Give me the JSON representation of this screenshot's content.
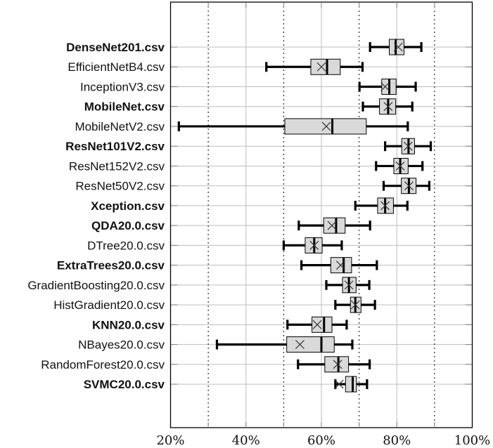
{
  "chart_data": {
    "type": "boxplot",
    "title": "",
    "xlabel": "",
    "ylabel": "",
    "xlim": [
      20,
      100
    ],
    "x_unit": "%",
    "x_ticks": [
      "20%",
      "40%",
      "60%",
      "80%",
      "100%"
    ],
    "x_tick_values": [
      20,
      40,
      60,
      80,
      100
    ],
    "grid": {
      "solid_lines_at": [
        40,
        60,
        80
      ],
      "dotted_lines_at": [
        30,
        50,
        70,
        90
      ],
      "horizontal_per_category": true
    },
    "colors": {
      "box_fill": "#d9d9d9",
      "box_stroke": "#000000",
      "whisker": "#000000",
      "mean_marker": "#333333",
      "grid_solid": "#bdbdbd",
      "grid_dotted": "#000000",
      "frame": "#000000"
    },
    "mean_marker": "x",
    "series": [
      {
        "name": "DenseNet201.csv",
        "bold": true,
        "min": 72.9,
        "q1": 78.0,
        "median": 79.7,
        "mean": 80.4,
        "q3": 81.9,
        "max": 86.5
      },
      {
        "name": "EfficientNetB4.csv",
        "bold": false,
        "min": 45.4,
        "q1": 57.2,
        "median": 61.5,
        "mean": 60.0,
        "q3": 65.0,
        "max": 70.9
      },
      {
        "name": "InceptionV3.csv",
        "bold": false,
        "min": 70.1,
        "q1": 76.0,
        "median": 78.0,
        "mean": 76.9,
        "q3": 79.8,
        "max": 85.0
      },
      {
        "name": "MobileNet.csv",
        "bold": true,
        "min": 71.0,
        "q1": 75.4,
        "median": 77.7,
        "mean": 77.7,
        "q3": 79.7,
        "max": 84.1
      },
      {
        "name": "MobileNetV2.csv",
        "bold": false,
        "min": 22.2,
        "q1": 50.3,
        "median": 62.9,
        "mean": 61.3,
        "q3": 71.9,
        "max": 82.9
      },
      {
        "name": "ResNet101V2.csv",
        "bold": true,
        "min": 76.9,
        "q1": 81.3,
        "median": 83.1,
        "mean": 83.0,
        "q3": 84.7,
        "max": 89.0
      },
      {
        "name": "ResNet152V2.csv",
        "bold": false,
        "min": 74.5,
        "q1": 79.2,
        "median": 80.9,
        "mean": 80.9,
        "q3": 83.0,
        "max": 86.8
      },
      {
        "name": "ResNet50V2.csv",
        "bold": false,
        "min": 76.5,
        "q1": 81.2,
        "median": 83.2,
        "mean": 83.2,
        "q3": 85.1,
        "max": 88.6
      },
      {
        "name": "Xception.csv",
        "bold": true,
        "min": 69.0,
        "q1": 74.9,
        "median": 76.9,
        "mean": 76.9,
        "q3": 79.1,
        "max": 82.8
      },
      {
        "name": "QDA20.0.csv",
        "bold": true,
        "min": 54.0,
        "q1": 60.6,
        "median": 63.9,
        "mean": 62.8,
        "q3": 66.3,
        "max": 72.9
      },
      {
        "name": "DTree20.0.csv",
        "bold": false,
        "min": 50.0,
        "q1": 55.7,
        "median": 58.1,
        "mean": 58.1,
        "q3": 60.2,
        "max": 65.4
      },
      {
        "name": "ExtraTrees20.0.csv",
        "bold": true,
        "min": 54.7,
        "q1": 62.5,
        "median": 65.9,
        "mean": 65.1,
        "q3": 68.0,
        "max": 74.7
      },
      {
        "name": "GradientBoosting20.0.csv",
        "bold": false,
        "min": 61.3,
        "q1": 65.6,
        "median": 67.3,
        "mean": 67.3,
        "q3": 69.2,
        "max": 72.7
      },
      {
        "name": "HistGradient20.0.csv",
        "bold": false,
        "min": 63.7,
        "q1": 67.7,
        "median": 69.0,
        "mean": 69.0,
        "q3": 70.5,
        "max": 74.2
      },
      {
        "name": "KNN20.0.csv",
        "bold": true,
        "min": 51.0,
        "q1": 57.5,
        "median": 60.7,
        "mean": 58.9,
        "q3": 62.8,
        "max": 66.7
      },
      {
        "name": "NBayes20.0.csv",
        "bold": false,
        "min": 32.3,
        "q1": 50.8,
        "median": 60.0,
        "mean": 54.3,
        "q3": 63.4,
        "max": 68.2
      },
      {
        "name": "RandomForest20.0.csv",
        "bold": false,
        "min": 53.8,
        "q1": 60.9,
        "median": 64.5,
        "mean": 64.3,
        "q3": 67.2,
        "max": 72.8
      },
      {
        "name": "SVMC20.0.csv",
        "bold": true,
        "min": 63.7,
        "q1": 66.4,
        "median": 68.3,
        "mean": 64.7,
        "q3": 69.3,
        "max": 72.1
      }
    ]
  }
}
